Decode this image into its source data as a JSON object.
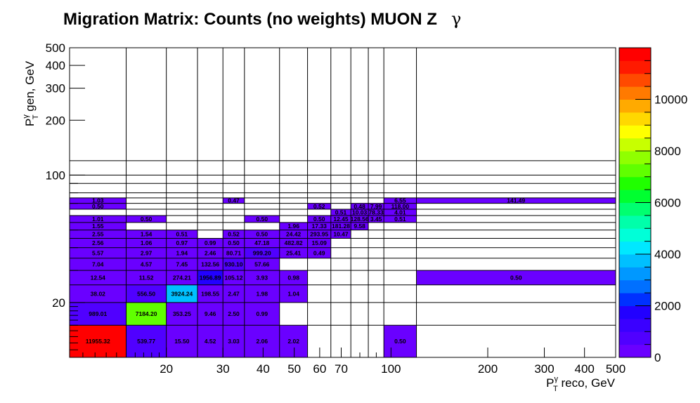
{
  "chart_data": {
    "type": "heatmap",
    "title": "Migration Matrix: Counts (no weights) MUON Z",
    "title_symbol": "γ",
    "xlabel": {
      "main": "P",
      "sup": "γ",
      "sub": "T",
      "rest": " reco, GeV"
    },
    "ylabel": {
      "main": "P",
      "sup": "γ",
      "sub": "T",
      "rest": " gen, GeV"
    },
    "x_scale": "log",
    "y_scale": "log",
    "x_edges": [
      10,
      15,
      20,
      25,
      30,
      35,
      45,
      55,
      65,
      75,
      85,
      95,
      120,
      500
    ],
    "y_edges": [
      10,
      15,
      20,
      25,
      30,
      35,
      40,
      45,
      50,
      55,
      60,
      65,
      70,
      75,
      80,
      90,
      100,
      120,
      500
    ],
    "x_range": [
      10,
      500
    ],
    "y_range": [
      10,
      500
    ],
    "x_tick_labels": [
      {
        "v": 20,
        "t": "20"
      },
      {
        "v": 30,
        "t": "30"
      },
      {
        "v": 40,
        "t": "40"
      },
      {
        "v": 50,
        "t": "50"
      },
      {
        "v": 60,
        "t": "60"
      },
      {
        "v": 70,
        "t": "70"
      },
      {
        "v": 100,
        "t": "100"
      },
      {
        "v": 200,
        "t": "200"
      },
      {
        "v": 300,
        "t": "300"
      },
      {
        "v": 400,
        "t": "400"
      },
      {
        "v": 500,
        "t": "500"
      }
    ],
    "y_tick_labels": [
      {
        "v": 20,
        "t": "20"
      },
      {
        "v": 100,
        "t": "100"
      },
      {
        "v": 200,
        "t": "200"
      },
      {
        "v": 300,
        "t": "300"
      },
      {
        "v": 400,
        "t": "400"
      },
      {
        "v": 500,
        "t": "500"
      }
    ],
    "x_minor_ticks": [
      11,
      12,
      13,
      14,
      15,
      16,
      17,
      18,
      19,
      80,
      90
    ],
    "y_minor_ticks": [
      11,
      12,
      13,
      14,
      15,
      16,
      17,
      18,
      19,
      30,
      40,
      50,
      60,
      70,
      80,
      90
    ],
    "z_range": [
      0,
      12000
    ],
    "colorbar_ticks": [
      0,
      2000,
      4000,
      6000,
      8000,
      10000
    ],
    "cells": [
      {
        "x": 0,
        "y": 0,
        "value": 11955.32,
        "label": "11955.32"
      },
      {
        "x": 1,
        "y": 0,
        "value": 539.77,
        "label": "539.77"
      },
      {
        "x": 2,
        "y": 0,
        "value": 15.5,
        "label": "15.50"
      },
      {
        "x": 3,
        "y": 0,
        "value": 4.52,
        "label": "4.52"
      },
      {
        "x": 4,
        "y": 0,
        "value": 3.03,
        "label": "3.03"
      },
      {
        "x": 5,
        "y": 0,
        "value": 2.06,
        "label": "2.06"
      },
      {
        "x": 6,
        "y": 0,
        "value": 2.02,
        "label": "2.02"
      },
      {
        "x": 11,
        "y": 0,
        "value": 0.5,
        "label": "0.50"
      },
      {
        "x": 0,
        "y": 1,
        "value": 989.01,
        "label": "989.01"
      },
      {
        "x": 1,
        "y": 1,
        "value": 7184.2,
        "label": "7184.20"
      },
      {
        "x": 2,
        "y": 1,
        "value": 353.25,
        "label": "353.25"
      },
      {
        "x": 3,
        "y": 1,
        "value": 9.46,
        "label": "9.46"
      },
      {
        "x": 4,
        "y": 1,
        "value": 2.5,
        "label": "2.50"
      },
      {
        "x": 5,
        "y": 1,
        "value": 0.99,
        "label": "0.99"
      },
      {
        "x": 0,
        "y": 2,
        "value": 38.02,
        "label": "38.02"
      },
      {
        "x": 1,
        "y": 2,
        "value": 556.5,
        "label": "556.50"
      },
      {
        "x": 2,
        "y": 2,
        "value": 3924.24,
        "label": "3924.24"
      },
      {
        "x": 3,
        "y": 2,
        "value": 198.55,
        "label": "198.55"
      },
      {
        "x": 4,
        "y": 2,
        "value": 2.47,
        "label": "2.47"
      },
      {
        "x": 5,
        "y": 2,
        "value": 1.98,
        "label": "1.98"
      },
      {
        "x": 6,
        "y": 2,
        "value": 1.04,
        "label": "1.04"
      },
      {
        "x": 0,
        "y": 3,
        "value": 12.54,
        "label": "12.54"
      },
      {
        "x": 1,
        "y": 3,
        "value": 11.52,
        "label": "11.52"
      },
      {
        "x": 2,
        "y": 3,
        "value": 274.21,
        "label": "274.21"
      },
      {
        "x": 3,
        "y": 3,
        "value": 1956.89,
        "label": "1956.89"
      },
      {
        "x": 4,
        "y": 3,
        "value": 105.12,
        "label": "105.12"
      },
      {
        "x": 5,
        "y": 3,
        "value": 3.93,
        "label": "3.93"
      },
      {
        "x": 6,
        "y": 3,
        "value": 0.98,
        "label": "0.98"
      },
      {
        "x": 12,
        "y": 3,
        "value": 0.5,
        "label": "0.50"
      },
      {
        "x": 0,
        "y": 4,
        "value": 7.04,
        "label": "7.04"
      },
      {
        "x": 1,
        "y": 4,
        "value": 4.57,
        "label": "4.57"
      },
      {
        "x": 2,
        "y": 4,
        "value": 7.45,
        "label": "7.45"
      },
      {
        "x": 3,
        "y": 4,
        "value": 132.56,
        "label": "132.56"
      },
      {
        "x": 4,
        "y": 4,
        "value": 930.1,
        "label": "930.10"
      },
      {
        "x": 5,
        "y": 4,
        "value": 57.66,
        "label": "57.66"
      },
      {
        "x": 0,
        "y": 5,
        "value": 5.57,
        "label": "5.57"
      },
      {
        "x": 1,
        "y": 5,
        "value": 2.97,
        "label": "2.97"
      },
      {
        "x": 2,
        "y": 5,
        "value": 1.94,
        "label": "1.94"
      },
      {
        "x": 3,
        "y": 5,
        "value": 2.46,
        "label": "2.46"
      },
      {
        "x": 4,
        "y": 5,
        "value": 80.71,
        "label": "80.71"
      },
      {
        "x": 5,
        "y": 5,
        "value": 999.2,
        "label": "999.20"
      },
      {
        "x": 6,
        "y": 5,
        "value": 25.41,
        "label": "25.41"
      },
      {
        "x": 7,
        "y": 5,
        "value": 0.49,
        "label": "0.49"
      },
      {
        "x": 0,
        "y": 6,
        "value": 2.56,
        "label": "2.56"
      },
      {
        "x": 1,
        "y": 6,
        "value": 1.06,
        "label": "1.06"
      },
      {
        "x": 2,
        "y": 6,
        "value": 0.97,
        "label": "0.97"
      },
      {
        "x": 3,
        "y": 6,
        "value": 0.99,
        "label": "0.99"
      },
      {
        "x": 4,
        "y": 6,
        "value": 0.5,
        "label": "0.50"
      },
      {
        "x": 5,
        "y": 6,
        "value": 47.18,
        "label": "47.18"
      },
      {
        "x": 6,
        "y": 6,
        "value": 482.82,
        "label": "482.82"
      },
      {
        "x": 7,
        "y": 6,
        "value": 15.09,
        "label": "15.09"
      },
      {
        "x": 0,
        "y": 7,
        "value": 2.55,
        "label": "2.55"
      },
      {
        "x": 1,
        "y": 7,
        "value": 1.54,
        "label": "1.54"
      },
      {
        "x": 2,
        "y": 7,
        "value": 0.51,
        "label": "0.51"
      },
      {
        "x": 4,
        "y": 7,
        "value": 0.52,
        "label": "0.52"
      },
      {
        "x": 5,
        "y": 7,
        "value": 0.5,
        "label": "0.50"
      },
      {
        "x": 6,
        "y": 7,
        "value": 24.42,
        "label": "24.42"
      },
      {
        "x": 7,
        "y": 7,
        "value": 293.95,
        "label": "293.95"
      },
      {
        "x": 8,
        "y": 7,
        "value": 10.47,
        "label": "10.47"
      },
      {
        "x": 0,
        "y": 8,
        "value": 1.55,
        "label": "1.55"
      },
      {
        "x": 6,
        "y": 8,
        "value": 1.96,
        "label": "1.96"
      },
      {
        "x": 7,
        "y": 8,
        "value": 17.33,
        "label": "17.33"
      },
      {
        "x": 8,
        "y": 8,
        "value": 181.28,
        "label": "181.28"
      },
      {
        "x": 9,
        "y": 8,
        "value": 9.58,
        "label": "9.58"
      },
      {
        "x": 0,
        "y": 9,
        "value": 1.01,
        "label": "1.01"
      },
      {
        "x": 1,
        "y": 9,
        "value": 0.5,
        "label": "0.50"
      },
      {
        "x": 5,
        "y": 9,
        "value": 0.5,
        "label": "0.50"
      },
      {
        "x": 7,
        "y": 9,
        "value": 0.5,
        "label": "0.50"
      },
      {
        "x": 8,
        "y": 9,
        "value": 12.45,
        "label": "12.45"
      },
      {
        "x": 9,
        "y": 9,
        "value": 128.56,
        "label": "128.56"
      },
      {
        "x": 10,
        "y": 9,
        "value": 3.45,
        "label": "3.45"
      },
      {
        "x": 11,
        "y": 9,
        "value": 0.51,
        "label": "0.51"
      },
      {
        "x": 8,
        "y": 10,
        "value": 0.51,
        "label": "0.51"
      },
      {
        "x": 9,
        "y": 10,
        "value": 10.03,
        "label": "10.03"
      },
      {
        "x": 10,
        "y": 10,
        "value": 78.33,
        "label": "78.33"
      },
      {
        "x": 11,
        "y": 10,
        "value": 4.01,
        "label": "4.01"
      },
      {
        "x": 0,
        "y": 11,
        "value": 0.5,
        "label": "0.50"
      },
      {
        "x": 7,
        "y": 11,
        "value": 0.52,
        "label": "0.52"
      },
      {
        "x": 9,
        "y": 11,
        "value": 0.48,
        "label": "0.48"
      },
      {
        "x": 10,
        "y": 11,
        "value": 7.99,
        "label": "7.99"
      },
      {
        "x": 11,
        "y": 11,
        "value": 118.0,
        "label": "118.00"
      },
      {
        "x": 0,
        "y": 12,
        "value": 1.03,
        "label": "1.03"
      },
      {
        "x": 4,
        "y": 12,
        "value": 0.47,
        "label": "0.47"
      },
      {
        "x": 11,
        "y": 12,
        "value": 6.55,
        "label": "6.55"
      },
      {
        "x": 12,
        "y": 12,
        "value": 141.49,
        "label": "141.49"
      }
    ],
    "palette": [
      "#6a00ff",
      "#5000ff",
      "#3a00ff",
      "#2200ff",
      "#0030ff",
      "#0070ff",
      "#0098ff",
      "#00c0ff",
      "#00e8ff",
      "#00ffd8",
      "#00ffaa",
      "#00ff70",
      "#00ff30",
      "#20ff00",
      "#60ff00",
      "#90ff00",
      "#c8ff00",
      "#ffff00",
      "#ffd800",
      "#ffaa00",
      "#ff7a00",
      "#ff4a00",
      "#ff1a00",
      "#ff0000"
    ]
  }
}
